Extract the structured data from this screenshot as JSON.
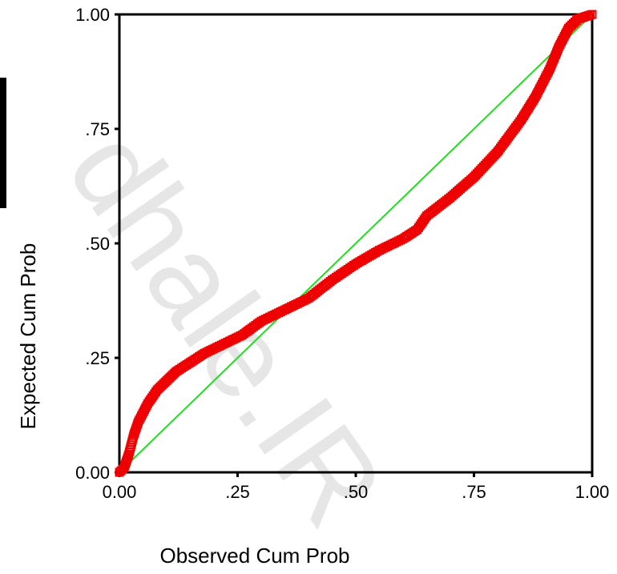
{
  "chart_data": {
    "type": "scatter",
    "title": "",
    "xlabel": "Observed Cum Prob",
    "ylabel": "Expected Cum Prob",
    "xlim": [
      0,
      1
    ],
    "ylim": [
      0,
      1
    ],
    "x_ticks": [
      {
        "value": 0.0,
        "label": "0.00"
      },
      {
        "value": 0.25,
        "label": ".25"
      },
      {
        "value": 0.5,
        "label": ".50"
      },
      {
        "value": 0.75,
        "label": ".75"
      },
      {
        "value": 1.0,
        "label": "1.00"
      }
    ],
    "y_ticks": [
      {
        "value": 0.0,
        "label": "0.00"
      },
      {
        "value": 0.25,
        "label": ".25"
      },
      {
        "value": 0.5,
        "label": ".50"
      },
      {
        "value": 0.75,
        "label": ".75"
      },
      {
        "value": 1.0,
        "label": "1.00"
      }
    ],
    "reference_line": {
      "from": [
        0,
        0
      ],
      "to": [
        1,
        1
      ],
      "color": "#22dd22"
    },
    "series": [
      {
        "marker": "square",
        "color": "#ee0000",
        "points": [
          [
            0.0,
            0.0
          ],
          [
            0.01,
            0.01
          ],
          [
            0.02,
            0.04
          ],
          [
            0.03,
            0.08
          ],
          [
            0.04,
            0.11
          ],
          [
            0.06,
            0.15
          ],
          [
            0.08,
            0.18
          ],
          [
            0.1,
            0.2
          ],
          [
            0.12,
            0.22
          ],
          [
            0.15,
            0.24
          ],
          [
            0.18,
            0.26
          ],
          [
            0.22,
            0.28
          ],
          [
            0.26,
            0.3
          ],
          [
            0.3,
            0.33
          ],
          [
            0.35,
            0.355
          ],
          [
            0.4,
            0.38
          ],
          [
            0.45,
            0.42
          ],
          [
            0.5,
            0.455
          ],
          [
            0.55,
            0.485
          ],
          [
            0.6,
            0.51
          ],
          [
            0.63,
            0.53
          ],
          [
            0.65,
            0.56
          ],
          [
            0.7,
            0.6
          ],
          [
            0.75,
            0.645
          ],
          [
            0.8,
            0.7
          ],
          [
            0.85,
            0.77
          ],
          [
            0.88,
            0.82
          ],
          [
            0.91,
            0.88
          ],
          [
            0.93,
            0.93
          ],
          [
            0.95,
            0.97
          ],
          [
            0.97,
            0.99
          ],
          [
            1.0,
            1.0
          ]
        ]
      }
    ],
    "grid": false
  },
  "watermark": {
    "text": "dhale.IR"
  }
}
